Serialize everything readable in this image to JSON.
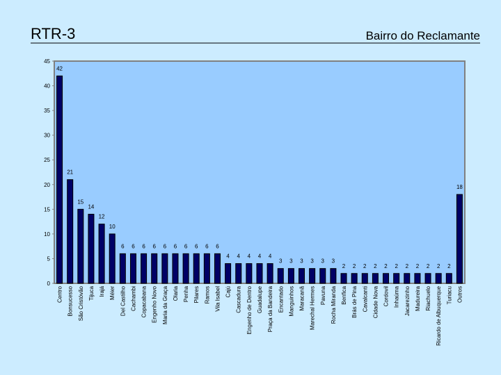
{
  "chart_data": {
    "type": "bar",
    "title": "RTR-3",
    "subtitle": "Bairro do Reclamante",
    "categories": [
      "Centro",
      "Bonsucesso",
      "São Cristóvão",
      "Tijuca",
      "Irajá",
      "Méier",
      "Del Castilho",
      "Cachambi",
      "Copacabana",
      "Engenho Novo",
      "Maria da Graça",
      "Olaria",
      "Penha",
      "Pilares",
      "Ramos",
      "Vila Isabel",
      "Cajú",
      "Cascadura",
      "Engenho de Dentro",
      "Guadalupe",
      "Praça da Bandeira",
      "Encantado",
      "Manguinhos",
      "Maracanã",
      "Marechal Hermes",
      "Pavuna",
      "Rocha Miranda",
      "Benfica",
      "Brás de Pina",
      "Cavalcanti",
      "Cidade Nova",
      "Cordovil",
      "Inhaúma",
      "Jacarezinho",
      "Madureira",
      "Riachuelo",
      "Ricardo de Albuquerque",
      "Turiacu",
      "Outros"
    ],
    "values": [
      42,
      21,
      15,
      14,
      12,
      10,
      6,
      6,
      6,
      6,
      6,
      6,
      6,
      6,
      6,
      6,
      4,
      4,
      4,
      4,
      4,
      3,
      3,
      3,
      3,
      3,
      3,
      2,
      2,
      2,
      2,
      2,
      2,
      2,
      2,
      2,
      2,
      2,
      18
    ],
    "color": "#000066",
    "ylim": [
      0,
      45
    ],
    "yticks": [
      0,
      5,
      10,
      15,
      20,
      25,
      30,
      35,
      40,
      45
    ]
  }
}
